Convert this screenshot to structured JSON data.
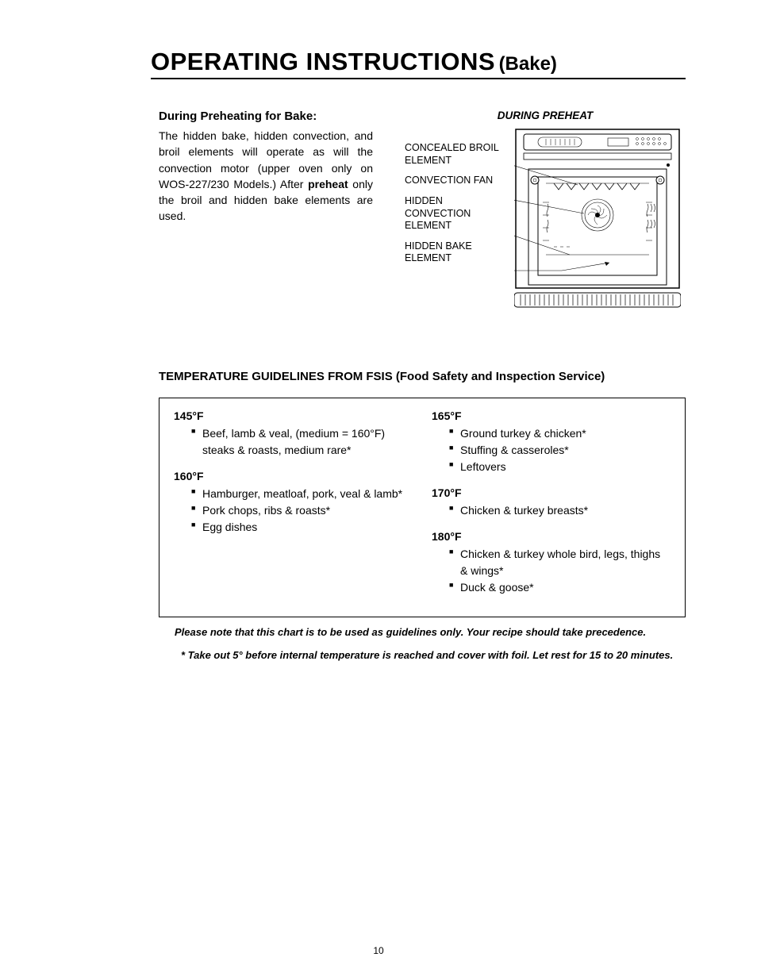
{
  "title": {
    "main": "OPERATING INSTRUCTIONS",
    "sub": "(Bake)"
  },
  "preheat": {
    "heading": "During Preheating for Bake:",
    "body_pre": "The hidden bake, hidden convection, and broil elements will operate as will the convection motor (upper oven only on WOS-227/230 Models.) After ",
    "body_bold": "preheat",
    "body_post": " only the broil and hidden bake elements are used."
  },
  "diagram": {
    "title": "DURING PREHEAT",
    "labels": {
      "broil": "CONCEALED BROIL ELEMENT",
      "fan": "CONVECTION FAN",
      "conv": "HIDDEN CONVECTION ELEMENT",
      "bake": "HIDDEN BAKE ELEMENT"
    }
  },
  "temp": {
    "heading": "TEMPERATURE GUIDELINES FROM FSIS (Food Safety and Inspection Service)",
    "left": [
      {
        "temp": "145°F",
        "items": [
          "Beef, lamb & veal, (medium = 160°F) steaks & roasts, medium rare*"
        ]
      },
      {
        "temp": "160°F",
        "items": [
          "Hamburger, meatloaf, pork, veal & lamb*",
          "Pork chops, ribs & roasts*",
          "Egg dishes"
        ]
      }
    ],
    "right": [
      {
        "temp": "165°F",
        "items": [
          "Ground turkey & chicken*",
          "Stuffing & casseroles*",
          "Leftovers"
        ]
      },
      {
        "temp": "170°F",
        "items": [
          "Chicken & turkey breasts*"
        ]
      },
      {
        "temp": "180°F",
        "items": [
          "Chicken & turkey whole bird, legs, thighs & wings*",
          "Duck & goose*"
        ]
      }
    ],
    "note1": "Please note that this chart is to be used as guidelines only.  Your recipe should take precedence.",
    "note2": "* Take out 5° before internal temperature is reached and cover with foil. Let rest for 15 to 20 minutes."
  },
  "page_number": "10"
}
